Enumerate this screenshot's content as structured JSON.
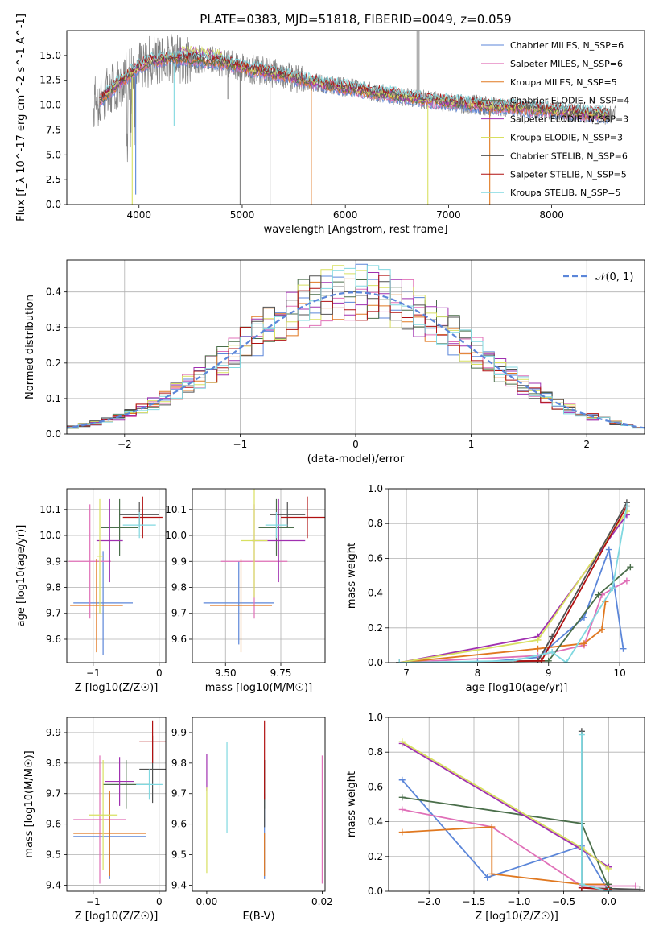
{
  "figure": {
    "title": "PLATE=0383, MJD=51818, FIBERID=0049, z=0.059"
  },
  "colors": [
    "#5b86d9",
    "#e070b8",
    "#e07820",
    "#4a6e4a",
    "#a030b0",
    "#d8e060",
    "#505050",
    "#b01010",
    "#80d8e0"
  ],
  "chart_data": [
    {
      "id": "spectrum",
      "type": "line",
      "title": "PLATE=0383, MJD=51818, FIBERID=0049, z=0.059",
      "xlabel": "wavelength [Angstrom, rest frame]",
      "ylabel": "Flux [f_λ 10^-17 erg cm^-2 s^-1 A^-1]",
      "xlim": [
        3300,
        8900
      ],
      "ylim": [
        0,
        17.5
      ],
      "xticks": [
        "4000",
        "5000",
        "6000",
        "7000",
        "8000"
      ],
      "yticks": [
        "0.0",
        "2.5",
        "5.0",
        "7.5",
        "10.0",
        "12.5",
        "15.0"
      ],
      "legend_position": "top-right",
      "series": [
        {
          "name": "Chabrier MILES, N_SSP=6"
        },
        {
          "name": "Salpeter MILES, N_SSP=6"
        },
        {
          "name": "Kroupa MILES, N_SSP=5"
        },
        {
          "name": "Chabrier ELODIE, N_SSP=4"
        },
        {
          "name": "Salpeter ELODIE, N_SSP=3"
        },
        {
          "name": "Kroupa ELODIE, N_SSP=3"
        },
        {
          "name": "Chabrier STELIB, N_SSP=6"
        },
        {
          "name": "Salpeter STELIB, N_SSP=5"
        },
        {
          "name": "Kroupa STELIB, N_SSP=5"
        }
      ],
      "continuum": {
        "x": [
          3600,
          3700,
          3800,
          3900,
          4000,
          4100,
          4200,
          4300,
          4400,
          4600,
          4800,
          5000,
          5200,
          5400,
          5600,
          5800,
          6000,
          6200,
          6400,
          6600,
          6800,
          7000,
          7200,
          7400,
          7600,
          7800,
          8000,
          8200,
          8400,
          8600,
          8800
        ],
        "y": [
          10.3,
          11.3,
          12.2,
          13.0,
          13.9,
          14.4,
          14.6,
          14.7,
          14.7,
          14.6,
          14.3,
          13.8,
          13.4,
          13.0,
          12.5,
          12.1,
          11.8,
          11.4,
          11.1,
          10.8,
          10.5,
          10.3,
          10.1,
          9.9,
          9.8,
          9.6,
          9.5,
          9.3,
          9.1,
          9.0,
          8.8
        ]
      },
      "absorption_lines": [
        {
          "x": 3934,
          "y": 0.0
        },
        {
          "x": 3968,
          "y": 1.0
        },
        {
          "x": 4340,
          "y": 7.9
        },
        {
          "x": 4861,
          "y": 10.6
        },
        {
          "x": 4980,
          "y": 0.0
        },
        {
          "x": 5270,
          "y": 0.0
        },
        {
          "x": 5670,
          "y": 0.0
        },
        {
          "x": 6800,
          "y": 0.0
        },
        {
          "x": 7400,
          "y": 0.0
        }
      ]
    },
    {
      "id": "residuals",
      "type": "line",
      "xlabel": "(data-model)/error",
      "ylabel": "Normed distribution",
      "xlim": [
        -2.5,
        2.5
      ],
      "ylim": [
        0,
        0.49
      ],
      "xticks": [
        "−2",
        "−1",
        "0",
        "1",
        "2"
      ],
      "yticks": [
        "0.0",
        "0.1",
        "0.2",
        "0.3",
        "0.4"
      ],
      "grid": true,
      "legend_position": "top-right",
      "reference_label": "𝒩(0, 1)",
      "reference": {
        "mu": 0,
        "sigma": 1
      },
      "bin_width": 0.1
    },
    {
      "id": "age-vs-Z",
      "type": "scatter",
      "xlabel": "Z [log10(Z/Z☉)]",
      "ylabel": "age  [log10(age/yr)]",
      "xlim": [
        -1.4,
        0.1
      ],
      "ylim": [
        9.51,
        10.18
      ],
      "xticks": [
        "−1",
        "0"
      ],
      "yticks": [
        "9.6",
        "9.7",
        "9.8",
        "9.9",
        "10.0",
        "10.1"
      ],
      "grid": true,
      "points": [
        {
          "x": -0.85,
          "xerr": 0.45,
          "y": 9.74,
          "yerr": 0.2
        },
        {
          "x": -1.05,
          "xerr": 0.32,
          "y": 9.9,
          "yerr": 0.22
        },
        {
          "x": -0.95,
          "xerr": 0.4,
          "y": 9.73,
          "yerr": 0.18
        },
        {
          "x": -0.6,
          "xerr": 0.28,
          "y": 10.03,
          "yerr": 0.11
        },
        {
          "x": -0.75,
          "xerr": 0.2,
          "y": 9.98,
          "yerr": 0.16
        },
        {
          "x": -0.9,
          "xerr": 0.05,
          "y": 9.92,
          "yerr": 0.22
        },
        {
          "x": -0.3,
          "xerr": 0.3,
          "y": 10.08,
          "yerr": 0.05
        },
        {
          "x": -0.25,
          "xerr": 0.3,
          "y": 10.07,
          "yerr": 0.08
        },
        {
          "x": -0.3,
          "xerr": 0.25,
          "y": 10.04,
          "yerr": 0.05
        }
      ]
    },
    {
      "id": "age-vs-mass",
      "type": "scatter",
      "xlabel": "mass [log10(M/M☉)]",
      "ylabel": "",
      "xlim": [
        9.35,
        9.95
      ],
      "ylim": [
        9.51,
        10.18
      ],
      "xticks": [
        "9.50",
        "9.75"
      ],
      "yticks": [
        "9.6",
        "9.7",
        "9.8",
        "9.9",
        "10.0",
        "10.1"
      ],
      "grid": true,
      "points": [
        {
          "x": 9.56,
          "xerr": 0.16,
          "y": 9.74,
          "yerr": 0.16
        },
        {
          "x": 9.63,
          "xerr": 0.15,
          "y": 9.9,
          "yerr": 0.22
        },
        {
          "x": 9.57,
          "xerr": 0.14,
          "y": 9.73,
          "yerr": 0.18
        },
        {
          "x": 9.73,
          "xerr": 0.08,
          "y": 10.03,
          "yerr": 0.11
        },
        {
          "x": 9.74,
          "xerr": 0.12,
          "y": 9.98,
          "yerr": 0.16
        },
        {
          "x": 9.63,
          "xerr": 0.06,
          "y": 9.98,
          "yerr": 0.22
        },
        {
          "x": 9.78,
          "xerr": 0.08,
          "y": 10.08,
          "yerr": 0.05
        },
        {
          "x": 9.87,
          "xerr": 0.12,
          "y": 10.07,
          "yerr": 0.08
        },
        {
          "x": 9.73,
          "xerr": 0.05,
          "y": 10.04,
          "yerr": 0.05
        }
      ]
    },
    {
      "id": "massweight-vs-age",
      "type": "line",
      "xlabel": "age  [log10(age/yr)]",
      "ylabel": "mass weight",
      "xlim": [
        6.75,
        10.35
      ],
      "ylim": [
        0,
        1.0
      ],
      "xticks": [
        "7",
        "8",
        "9",
        "10"
      ],
      "yticks": [
        "0.0",
        "0.2",
        "0.4",
        "0.6",
        "0.8",
        "1.0"
      ],
      "grid": true,
      "series": [
        {
          "x": [
            6.9,
            8.0,
            8.85,
            9.5,
            9.85,
            10.05
          ],
          "y": [
            0.0,
            0.0,
            0.03,
            0.26,
            0.65,
            0.08
          ]
        },
        {
          "x": [
            6.9,
            8.85,
            9.5,
            9.75,
            10.1
          ],
          "y": [
            0.0,
            0.04,
            0.1,
            0.39,
            0.47
          ]
        },
        {
          "x": [
            6.9,
            8.85,
            9.5,
            9.75,
            9.8
          ],
          "y": [
            0.0,
            0.08,
            0.11,
            0.19,
            0.35
          ]
        },
        {
          "x": [
            6.9,
            9.0,
            9.7,
            10.15
          ],
          "y": [
            0.0,
            0.01,
            0.39,
            0.55
          ]
        },
        {
          "x": [
            6.9,
            8.85,
            10.1
          ],
          "y": [
            0.0,
            0.15,
            0.85
          ]
        },
        {
          "x": [
            6.9,
            8.85,
            10.1
          ],
          "y": [
            0.0,
            0.13,
            0.87
          ]
        },
        {
          "x": [
            6.9,
            8.85,
            9.05,
            10.1
          ],
          "y": [
            0.0,
            0.01,
            0.15,
            0.92
          ]
        },
        {
          "x": [
            6.9,
            8.9,
            10.1
          ],
          "y": [
            0.0,
            0.01,
            0.9
          ]
        },
        {
          "x": [
            6.9,
            8.5,
            9.05,
            9.25,
            9.9,
            10.1
          ],
          "y": [
            0.0,
            0.01,
            0.06,
            0.0,
            0.43,
            0.9
          ]
        }
      ]
    },
    {
      "id": "mass-vs-Z",
      "type": "scatter",
      "xlabel": "Z [log10(Z/Z☉)]",
      "ylabel": "mass [log10(M/M☉)]",
      "xlim": [
        -1.4,
        0.1
      ],
      "ylim": [
        9.38,
        9.95
      ],
      "xticks": [
        "−1",
        "0"
      ],
      "yticks": [
        "9.4",
        "9.5",
        "9.6",
        "9.7",
        "9.8",
        "9.9"
      ],
      "grid": true,
      "points": [
        {
          "x": -0.75,
          "xerr": 0.55,
          "y": 9.56,
          "yerr": 0.14
        },
        {
          "x": -0.9,
          "xerr": 0.4,
          "y": 9.615,
          "yerr": 0.21
        },
        {
          "x": -0.75,
          "xerr": 0.55,
          "y": 9.57,
          "yerr": 0.14
        },
        {
          "x": -0.5,
          "xerr": 0.35,
          "y": 9.73,
          "yerr": 0.08
        },
        {
          "x": -0.6,
          "xerr": 0.22,
          "y": 9.74,
          "yerr": 0.08
        },
        {
          "x": -0.85,
          "xerr": 0.22,
          "y": 9.63,
          "yerr": 0.18
        },
        {
          "x": -0.1,
          "xerr": 0.2,
          "y": 9.78,
          "yerr": 0.11
        },
        {
          "x": -0.1,
          "xerr": 0.2,
          "y": 9.87,
          "yerr": 0.07
        },
        {
          "x": -0.15,
          "xerr": 0.2,
          "y": 9.73,
          "yerr": 0.05
        }
      ]
    },
    {
      "id": "mass-vs-ebv",
      "type": "scatter",
      "xlabel": "E(B-V)",
      "ylabel": "",
      "xlim": [
        -0.0025,
        0.0205
      ],
      "ylim": [
        9.38,
        9.95
      ],
      "xticks": [
        "0.00",
        "0.02"
      ],
      "yticks": [
        "9.4",
        "9.5",
        "9.6",
        "9.7",
        "9.8",
        "9.9"
      ],
      "points": [
        {
          "x": 0.01,
          "y": 9.56,
          "yerr": 0.14
        },
        {
          "x": 0.02,
          "y": 9.615,
          "yerr": 0.21
        },
        {
          "x": 0.01,
          "y": 9.5,
          "yerr": 0.07
        },
        {
          "x": 0.01,
          "y": 9.73,
          "yerr": 0.08
        },
        {
          "x": 0.0,
          "y": 9.77,
          "yerr": 0.06
        },
        {
          "x": 0.0,
          "y": 9.58,
          "yerr": 0.14
        },
        {
          "x": 0.01,
          "y": 9.7,
          "yerr": 0.11
        },
        {
          "x": 0.01,
          "y": 9.81,
          "yerr": 0.13
        },
        {
          "x": 0.0035,
          "y": 9.72,
          "yerr": 0.15
        }
      ]
    },
    {
      "id": "massweight-vs-Z",
      "type": "line",
      "xlabel": "Z [log10(Z/Z☉)]",
      "ylabel": "mass weight",
      "xlim": [
        -2.45,
        0.4
      ],
      "ylim": [
        0,
        1.0
      ],
      "xticks": [
        "−2.0",
        "−1.5",
        "−1.0",
        "−0.5",
        "0.0"
      ],
      "yticks": [
        "0.0",
        "0.2",
        "0.4",
        "0.6",
        "0.8",
        "1.0"
      ],
      "grid": true,
      "series": [
        {
          "x": [
            -2.3,
            -1.35,
            -0.3,
            0.0
          ],
          "y": [
            0.64,
            0.08,
            0.26,
            0.0
          ]
        },
        {
          "x": [
            -2.3,
            -1.3,
            -0.3,
            0.3
          ],
          "y": [
            0.47,
            0.37,
            0.03,
            0.03
          ]
        },
        {
          "x": [
            -2.3,
            -1.3,
            -1.3,
            -0.3,
            0.0
          ],
          "y": [
            0.34,
            0.37,
            0.1,
            0.04,
            0.04
          ]
        },
        {
          "x": [
            -2.3,
            -0.3,
            0.0,
            0.0
          ],
          "y": [
            0.54,
            0.39,
            0.02,
            0.04
          ]
        },
        {
          "x": [
            -2.3,
            -0.3,
            0.0
          ],
          "y": [
            0.85,
            0.24,
            0.14
          ]
        },
        {
          "x": [
            -2.3,
            -0.3,
            0.0
          ],
          "y": [
            0.86,
            0.25,
            0.13
          ]
        },
        {
          "x": [
            -0.3,
            -0.3,
            0.35
          ],
          "y": [
            0.92,
            0.02,
            0.01
          ]
        },
        {
          "x": [
            -0.3,
            0.0
          ],
          "y": [
            0.02,
            0.01
          ]
        },
        {
          "x": [
            -0.3,
            -0.3,
            0.0
          ],
          "y": [
            0.9,
            0.04,
            0.0
          ]
        }
      ]
    }
  ]
}
